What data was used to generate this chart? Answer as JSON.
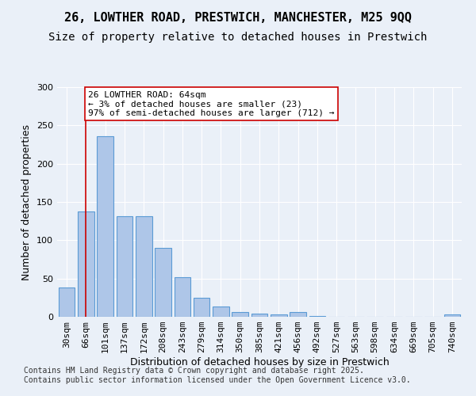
{
  "title_line1": "26, LOWTHER ROAD, PRESTWICH, MANCHESTER, M25 9QQ",
  "title_line2": "Size of property relative to detached houses in Prestwich",
  "xlabel": "Distribution of detached houses by size in Prestwich",
  "ylabel": "Number of detached properties",
  "categories": [
    "30sqm",
    "66sqm",
    "101sqm",
    "137sqm",
    "172sqm",
    "208sqm",
    "243sqm",
    "279sqm",
    "314sqm",
    "350sqm",
    "385sqm",
    "421sqm",
    "456sqm",
    "492sqm",
    "527sqm",
    "563sqm",
    "598sqm",
    "634sqm",
    "669sqm",
    "705sqm",
    "740sqm"
  ],
  "values": [
    38,
    138,
    236,
    131,
    131,
    90,
    52,
    25,
    13,
    6,
    4,
    3,
    6,
    1,
    0,
    0,
    0,
    0,
    0,
    0,
    3
  ],
  "bar_color": "#aec6e8",
  "bar_edge_color": "#5b9bd5",
  "vline_x": 0.97,
  "vline_color": "#cc0000",
  "annotation_text": "26 LOWTHER ROAD: 64sqm\n← 3% of detached houses are smaller (23)\n97% of semi-detached houses are larger (712) →",
  "annotation_box_color": "#ffffff",
  "annotation_box_edge": "#cc0000",
  "ylim": [
    0,
    300
  ],
  "yticks": [
    0,
    50,
    100,
    150,
    200,
    250,
    300
  ],
  "bg_color": "#eaf0f8",
  "plot_bg_color": "#eaf0f8",
  "footer_text": "Contains HM Land Registry data © Crown copyright and database right 2025.\nContains public sector information licensed under the Open Government Licence v3.0.",
  "title_fontsize": 11,
  "subtitle_fontsize": 10,
  "axis_label_fontsize": 9,
  "tick_fontsize": 8,
  "annotation_fontsize": 8,
  "footer_fontsize": 7
}
